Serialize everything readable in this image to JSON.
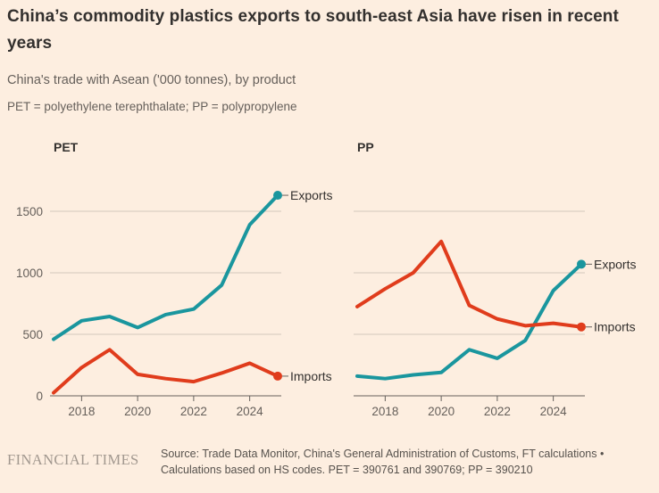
{
  "header": {
    "title": "China’s commodity plastics exports to south-east Asia have risen in recent years",
    "subtitle": "China's trade with Asean ('000 tonnes), by product",
    "note": "PET = polyethylene terephthalate; PP = polypropylene"
  },
  "chart_data": [
    {
      "type": "line",
      "title": "PET",
      "x": [
        2017,
        2018,
        2019,
        2020,
        2021,
        2022,
        2023,
        2024,
        2025
      ],
      "xticks": [
        2018,
        2020,
        2022,
        2024
      ],
      "yticks": [
        0,
        500,
        1000,
        1500
      ],
      "ylim": [
        0,
        1700
      ],
      "grid": true,
      "legend_position": "end-of-line",
      "series": [
        {
          "name": "Exports",
          "color": "#1a969e",
          "values": [
            460,
            610,
            645,
            555,
            660,
            705,
            900,
            1390,
            1630
          ]
        },
        {
          "name": "Imports",
          "color": "#e03c1c",
          "values": [
            25,
            230,
            375,
            175,
            140,
            115,
            185,
            265,
            160
          ]
        }
      ]
    },
    {
      "type": "line",
      "title": "PP",
      "x": [
        2017,
        2018,
        2019,
        2020,
        2021,
        2022,
        2023,
        2024,
        2025
      ],
      "xticks": [
        2018,
        2020,
        2022,
        2024
      ],
      "yticks": [
        0,
        500,
        1000,
        1500
      ],
      "ylim": [
        0,
        1700
      ],
      "grid": true,
      "legend_position": "end-of-line",
      "series": [
        {
          "name": "Exports",
          "color": "#1a969e",
          "values": [
            160,
            140,
            170,
            190,
            375,
            305,
            450,
            855,
            1070
          ]
        },
        {
          "name": "Imports",
          "color": "#e03c1c",
          "values": [
            725,
            870,
            1000,
            1255,
            735,
            625,
            570,
            590,
            560
          ]
        }
      ]
    }
  ],
  "colors": {
    "background": "#fdeee0",
    "exports_line": "#1a969e",
    "imports_line": "#e03c1c",
    "grid_line": "#d2c8bc",
    "axis_line": "#66605c",
    "title_text": "#33302e",
    "muted_text": "#655f5a"
  },
  "footer": {
    "logo": "FINANCIAL TIMES",
    "source_lines": [
      "Source: Trade Data Monitor, China's General Administration of Customs, FT calculations •",
      "Calculations based on HS codes. PET = 390761 and 390769; PP = 390210"
    ]
  }
}
